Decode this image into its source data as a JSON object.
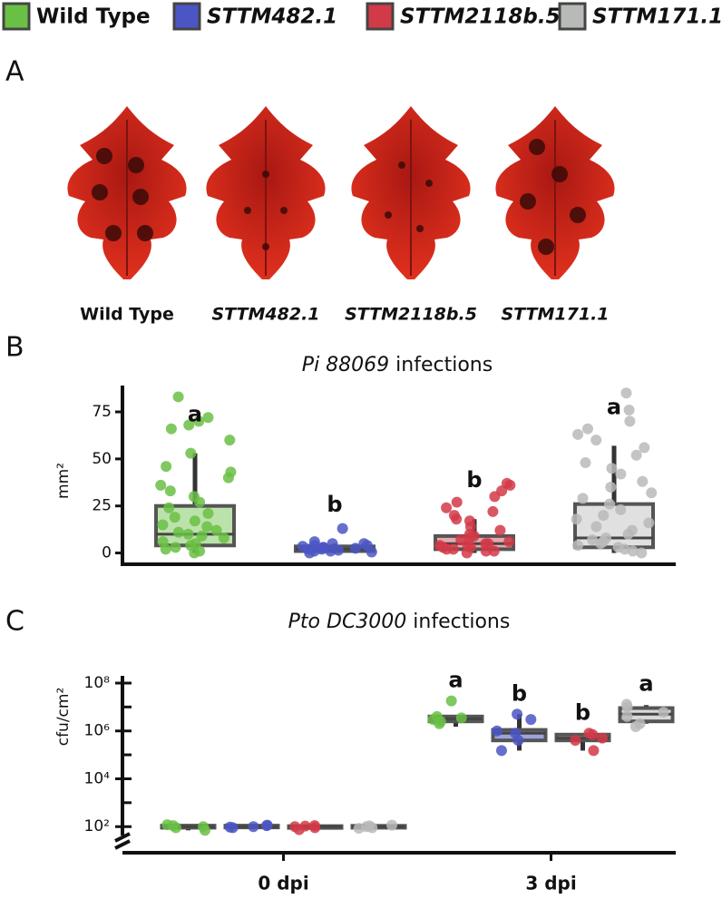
{
  "panels": [
    "A",
    "B",
    "C"
  ],
  "panel_a": {
    "leaves": [
      "Wild Type",
      "STTM482.1",
      "STTM2118b.5",
      "STTM171.1"
    ]
  },
  "chart_data": [
    {
      "type": "box",
      "title": {
        "italic": "Pi 88069",
        "text": "infections"
      },
      "ylabel": "mm²",
      "ylim": [
        -6,
        89
      ],
      "yticks": [
        0,
        25,
        50,
        75
      ],
      "series": [
        {
          "name": "Wild Type",
          "italic": false,
          "color": "#6abf45",
          "letter": "a",
          "box": {
            "min": 0,
            "q1": 4,
            "median": 10,
            "q3": 25,
            "max": 53
          },
          "points": [
            0,
            1,
            2,
            3,
            4,
            5,
            6,
            8,
            9,
            10,
            11,
            12,
            14,
            15,
            17,
            19,
            21,
            24,
            27,
            30,
            33,
            36,
            40,
            43,
            46,
            53,
            60,
            66,
            68,
            70,
            72,
            83
          ]
        },
        {
          "name": "STTM482.1",
          "italic": true,
          "color": "#4b56c4",
          "letter": "b",
          "box": {
            "min": 0,
            "q1": 1,
            "median": 2,
            "q3": 3.5,
            "max": 5
          },
          "points": [
            0,
            0.5,
            1,
            1,
            1.5,
            2,
            2,
            2.5,
            3,
            3,
            3.5,
            4,
            4,
            5,
            5,
            6,
            13
          ]
        },
        {
          "name": "STTM2118b.5",
          "italic": true,
          "color": "#d23a48",
          "letter": "b",
          "box": {
            "min": 0,
            "q1": 2,
            "median": 5,
            "q3": 9,
            "max": 18
          },
          "points": [
            0,
            1,
            1,
            2,
            2,
            3,
            3,
            4,
            4,
            5,
            5,
            6,
            7,
            8,
            9,
            10,
            12,
            14,
            17,
            18,
            20,
            22,
            24,
            27,
            30,
            33,
            36,
            37
          ]
        },
        {
          "name": "STTM171.1",
          "italic": true,
          "color": "#b8bab8",
          "letter": "a",
          "box": {
            "min": 0,
            "q1": 3,
            "median": 8,
            "q3": 26,
            "max": 57
          },
          "points": [
            0,
            1,
            2,
            3,
            4,
            5,
            6,
            7,
            8,
            10,
            12,
            14,
            16,
            18,
            20,
            23,
            26,
            29,
            32,
            35,
            38,
            42,
            45,
            48,
            52,
            56,
            60,
            63,
            66,
            70,
            76,
            85
          ]
        }
      ]
    },
    {
      "type": "box",
      "log": true,
      "title": {
        "italic": "Pto DC3000",
        "text": "infections"
      },
      "ylabel": "cfu/cm²",
      "categories": [
        "0 dpi",
        "3 dpi"
      ],
      "ylim": [
        30,
        200000000
      ],
      "yticks": [
        {
          "value": 100,
          "label": "10²"
        },
        {
          "value": 10000,
          "label": "10⁴"
        },
        {
          "value": 1000000,
          "label": "10⁶"
        },
        {
          "value": 100000000,
          "label": "10⁸"
        }
      ],
      "yminorticks": [
        1000,
        100000,
        10000000
      ],
      "series": [
        {
          "color": "#6abf45",
          "letters": [
            null,
            "a"
          ],
          "boxes": [
            {
              "min": 70,
              "q1": 90,
              "median": 100,
              "q3": 110,
              "max": 120
            },
            {
              "min": 1500000,
              "q1": 2500000,
              "median": 3200000,
              "q3": 4000000,
              "max": 4000000
            }
          ],
          "points": [
            [
              70,
              90,
              100,
              110,
              120
            ],
            [
              2000000,
              2500000,
              3000000,
              3500000,
              4000000,
              18000000
            ]
          ]
        },
        {
          "color": "#4b56c4",
          "letters": [
            null,
            "b"
          ],
          "boxes": [
            {
              "min": 90,
              "q1": 95,
              "median": 100,
              "q3": 110,
              "max": 115
            },
            {
              "min": 150000,
              "q1": 400000,
              "median": 800000,
              "q3": 1100000,
              "max": 5000000
            }
          ],
          "points": [
            [
              90,
              95,
              100,
              110,
              115
            ],
            [
              150000,
              400000,
              800000,
              1000000,
              3000000,
              5000000
            ]
          ]
        },
        {
          "color": "#d23a48",
          "letters": [
            null,
            "b"
          ],
          "boxes": [
            {
              "min": 75,
              "q1": 90,
              "median": 100,
              "q3": 105,
              "max": 110
            },
            {
              "min": 150000,
              "q1": 400000,
              "median": 500000,
              "q3": 700000,
              "max": 800000
            }
          ],
          "points": [
            [
              75,
              90,
              100,
              105,
              110
            ],
            [
              150000,
              400000,
              500000,
              700000,
              800000
            ]
          ]
        },
        {
          "color": "#b8bab8",
          "letters": [
            null,
            "a"
          ],
          "boxes": [
            {
              "min": 85,
              "q1": 90,
              "median": 100,
              "q3": 108,
              "max": 115
            },
            {
              "min": 2000000,
              "q1": 2500000,
              "median": 5000000,
              "q3": 9000000,
              "max": 12000000
            }
          ],
          "points": [
            [
              85,
              90,
              100,
              108,
              115
            ],
            [
              1500000,
              2000000,
              4000000,
              6000000,
              10000000,
              13000000
            ]
          ]
        }
      ]
    }
  ]
}
